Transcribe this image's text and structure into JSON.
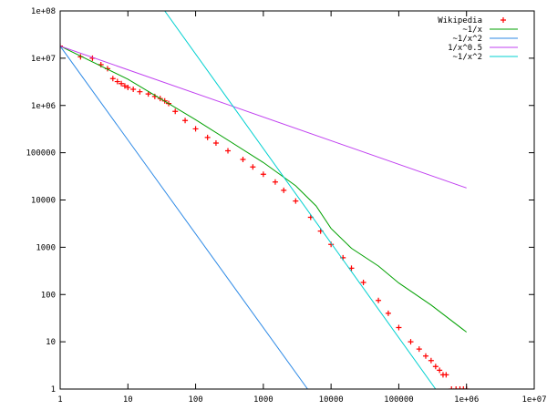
{
  "chart_data": {
    "type": "line",
    "title": "",
    "xlabel": "",
    "ylabel": "",
    "x_scale": "log",
    "y_scale": "log",
    "xlim": [
      1,
      10000000
    ],
    "ylim": [
      1,
      100000000
    ],
    "x_tick_labels": [
      "1",
      "10",
      "100",
      "1000",
      "10000",
      "100000",
      "1e+06",
      "1e+07"
    ],
    "y_tick_labels": [
      "1",
      "10",
      "100",
      "1000",
      "10000",
      "100000",
      "1e+06",
      "1e+07",
      "1e+08"
    ],
    "grid": false,
    "legend_position": "top-right",
    "series": [
      {
        "name": "Wikipedia",
        "style": "points",
        "marker": "+",
        "color": "#ff0000",
        "x": [
          1,
          2,
          3,
          4,
          5,
          6,
          7,
          8,
          9,
          10,
          12,
          15,
          20,
          25,
          30,
          35,
          40,
          50,
          70,
          100,
          150,
          200,
          300,
          500,
          700,
          1000,
          1500,
          2000,
          3000,
          5000,
          7000,
          10000,
          15000,
          20000,
          30000,
          50000,
          70000,
          100000,
          150000,
          200000,
          250000,
          300000,
          350000,
          400000,
          450000,
          500000,
          600000,
          700000,
          800000,
          900000,
          1000000
        ],
        "y": [
          18000000,
          10700000,
          10000000,
          7300000,
          6000000,
          3700000,
          3200000,
          2900000,
          2600000,
          2400000,
          2200000,
          1950000,
          1750000,
          1550000,
          1400000,
          1250000,
          1100000,
          750000,
          480000,
          320000,
          210000,
          160000,
          110000,
          72000,
          50000,
          35000,
          24000,
          16000,
          9500,
          4300,
          2200,
          1150,
          600,
          360,
          180,
          75,
          40,
          20,
          10,
          7,
          5,
          4,
          3,
          2.5,
          2,
          2,
          1,
          1,
          1,
          1,
          1
        ]
      },
      {
        "name": "~1/x",
        "style": "line",
        "color": "#00a000",
        "x": [
          1,
          10,
          100,
          1000,
          3000,
          6000,
          10000,
          20000,
          50000,
          100000,
          300000,
          1000000
        ],
        "y": [
          18000000,
          3600000,
          500000,
          62000,
          20000,
          7500,
          2500,
          950,
          400,
          175,
          60,
          16
        ]
      },
      {
        "name": "~1/x^2",
        "style": "line",
        "color": "#2e8ae6",
        "x": [
          1,
          4500
        ],
        "y": [
          18000000,
          1
        ]
      },
      {
        "name": "1/x^0.5",
        "style": "line",
        "color": "#c040f0",
        "x": [
          1,
          1000000
        ],
        "y": [
          18000000,
          18000
        ]
      },
      {
        "name": "~1/x^2",
        "style": "line",
        "color": "#00d0d0",
        "x": [
          35,
          350000
        ],
        "y": [
          100000000,
          1
        ]
      }
    ]
  }
}
